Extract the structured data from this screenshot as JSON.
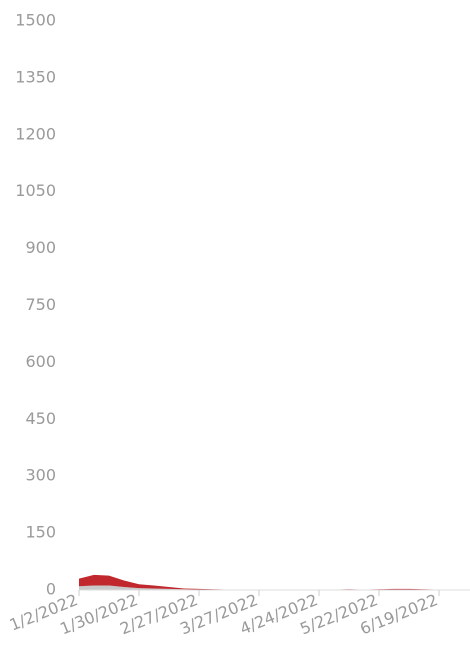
{
  "chart_data": {
    "type": "stacked_area",
    "x": [
      "1/2/2022",
      null,
      null,
      null,
      "1/30/2022",
      null,
      null,
      null,
      "2/27/2022",
      null,
      null,
      null,
      "3/27/2022",
      null,
      null,
      null,
      "4/24/2022",
      null,
      null,
      null,
      "5/22/2022",
      null,
      null,
      null,
      "6/19/2022",
      null,
      null
    ],
    "series": [
      {
        "color": "#c8c8c8",
        "values": [
          10,
          12,
          12,
          8,
          5,
          4,
          3,
          2,
          1,
          1,
          0,
          0,
          0,
          0,
          0,
          0,
          0,
          0,
          1,
          0,
          1,
          1,
          1,
          1,
          0,
          0,
          0
        ]
      },
      {
        "color": "#c0282d",
        "values": [
          20,
          28,
          26,
          17,
          10,
          8,
          5,
          2,
          2,
          1,
          1,
          1,
          1,
          0,
          0,
          0,
          1,
          1,
          1,
          1,
          1,
          2,
          2,
          1,
          1,
          1,
          1
        ]
      }
    ],
    "ylim": [
      0,
      1500
    ],
    "yticks": [
      0,
      150,
      300,
      450,
      600,
      750,
      900,
      1050,
      1200,
      1350,
      1500
    ]
  }
}
